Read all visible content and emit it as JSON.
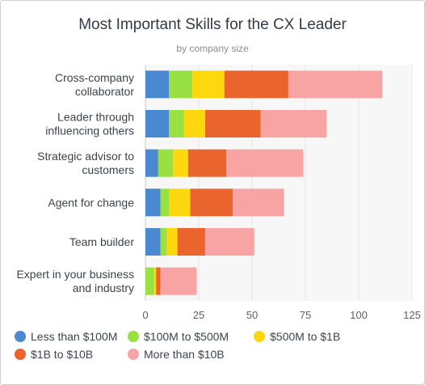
{
  "chart_data": {
    "type": "bar",
    "orientation": "horizontal",
    "stacked": true,
    "title": "Most Important Skills for the CX Leader",
    "subtitle": "by company size",
    "categories": [
      [
        "Cross-company",
        "collaborator"
      ],
      [
        "Leader through",
        "influencing others"
      ],
      [
        "Strategic advisor to",
        "customers"
      ],
      [
        "Agent for change"
      ],
      [
        "Team builder"
      ],
      [
        "Expert in your business",
        "and industry"
      ]
    ],
    "series": [
      {
        "name": "Less than $100M",
        "color": "#4a88d0",
        "values": [
          11,
          11,
          6,
          7,
          7,
          0
        ]
      },
      {
        "name": "$100M to $500M",
        "color": "#99e043",
        "values": [
          11,
          7,
          7,
          4,
          3,
          4
        ]
      },
      {
        "name": "$500M to $1B",
        "color": "#fdd80e",
        "values": [
          15,
          10,
          7,
          10,
          5,
          1
        ]
      },
      {
        "name": "$1B to $10B",
        "color": "#ea652d",
        "values": [
          30,
          26,
          18,
          20,
          13,
          2
        ]
      },
      {
        "name": "More than $10B",
        "color": "#f8a4a5",
        "values": [
          44,
          31,
          36,
          24,
          23,
          17
        ]
      }
    ],
    "xlim": [
      0,
      125
    ],
    "xticks": [
      0,
      25,
      50,
      75,
      100,
      125
    ],
    "grid": true,
    "legend_position": "bottom"
  }
}
